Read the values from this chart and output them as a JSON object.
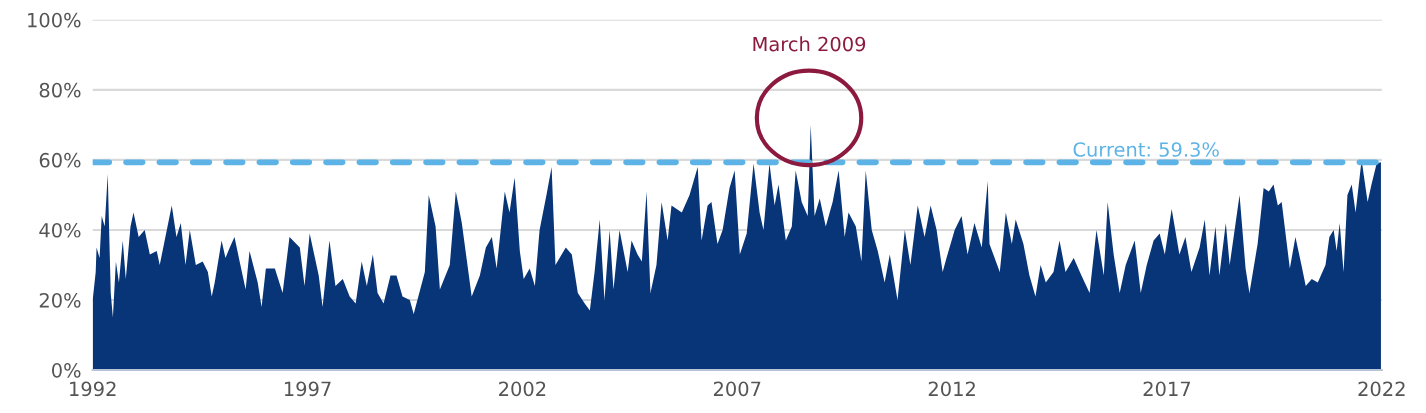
{
  "chart_data": {
    "type": "area",
    "x": [
      1992.0,
      1992.07,
      1992.09,
      1992.16,
      1992.21,
      1992.28,
      1992.35,
      1992.42,
      1992.47,
      1992.54,
      1992.61,
      1992.7,
      1992.77,
      1992.88,
      1992.95,
      1993.07,
      1993.21,
      1993.33,
      1993.49,
      1993.56,
      1993.84,
      1993.95,
      1994.05,
      1994.16,
      1994.26,
      1994.4,
      1994.56,
      1994.68,
      1994.77,
      1994.84,
      1995.0,
      1995.09,
      1995.19,
      1995.3,
      1995.42,
      1995.56,
      1995.65,
      1995.84,
      1995.93,
      1996.03,
      1996.24,
      1996.42,
      1996.58,
      1996.82,
      1996.93,
      1997.05,
      1997.26,
      1997.35,
      1997.51,
      1997.65,
      1997.82,
      1997.98,
      1998.12,
      1998.26,
      1998.38,
      1998.52,
      1998.63,
      1998.77,
      1998.93,
      1999.07,
      1999.21,
      1999.38,
      1999.47,
      1999.73,
      1999.82,
      1999.98,
      2000.08,
      2000.31,
      2000.45,
      2000.59,
      2000.82,
      2001.01,
      2001.15,
      2001.29,
      2001.4,
      2001.59,
      2001.7,
      2001.82,
      2001.94,
      2002.03,
      2002.17,
      2002.29,
      2002.4,
      2002.56,
      2002.68,
      2002.77,
      2003.01,
      2003.15,
      2003.29,
      2003.45,
      2003.57,
      2003.68,
      2003.8,
      2003.91,
      2004.03,
      2004.12,
      2004.26,
      2004.45,
      2004.54,
      2004.68,
      2004.78,
      2004.89,
      2004.98,
      2005.12,
      2005.24,
      2005.38,
      2005.47,
      2005.71,
      2005.89,
      2006.08,
      2006.17,
      2006.31,
      2006.4,
      2006.54,
      2006.66,
      2006.82,
      2006.94,
      2007.06,
      2007.22,
      2007.38,
      2007.52,
      2007.61,
      2007.75,
      2007.87,
      2007.96,
      2008.13,
      2008.27,
      2008.36,
      2008.5,
      2008.64,
      2008.71,
      2008.8,
      2008.92,
      2009.06,
      2009.22,
      2009.36,
      2009.5,
      2009.59,
      2009.76,
      2009.89,
      2009.99,
      2010.13,
      2010.27,
      2010.43,
      2010.55,
      2010.73,
      2010.9,
      2011.03,
      2011.2,
      2011.36,
      2011.5,
      2011.64,
      2011.78,
      2011.87,
      2012.06,
      2012.22,
      2012.36,
      2012.52,
      2012.69,
      2012.83,
      2012.87,
      2013.11,
      2013.25,
      2013.39,
      2013.48,
      2013.66,
      2013.8,
      2013.94,
      2014.06,
      2014.18,
      2014.36,
      2014.5,
      2014.64,
      2014.83,
      2015.01,
      2015.2,
      2015.36,
      2015.53,
      2015.62,
      2015.76,
      2015.9,
      2016.04,
      2016.25,
      2016.39,
      2016.53,
      2016.69,
      2016.83,
      2016.95,
      2017.11,
      2017.29,
      2017.43,
      2017.57,
      2017.76,
      2017.88,
      2017.99,
      2018.13,
      2018.22,
      2018.37,
      2018.46,
      2018.69,
      2018.83,
      2018.92,
      2019.11,
      2019.25,
      2019.37,
      2019.48,
      2019.58,
      2019.67,
      2019.86,
      2019.99,
      2020.13,
      2020.23,
      2020.37,
      2020.51,
      2020.69,
      2020.78,
      2020.88,
      2020.95,
      2021.02,
      2021.11,
      2021.2,
      2021.3,
      2021.39,
      2021.53,
      2021.67,
      2021.76,
      2021.88,
      2021.98
    ],
    "series": [
      {
        "color": "#083577",
        "values": [
          20,
          28,
          35,
          32,
          44,
          41,
          56,
          22,
          15,
          31,
          25,
          37,
          26,
          41,
          45,
          38,
          40,
          33,
          34,
          30,
          47,
          38,
          42,
          30,
          40,
          30,
          31,
          28,
          21,
          25,
          37,
          32,
          35,
          38,
          31,
          23,
          34,
          25,
          18,
          29,
          29,
          22,
          38,
          35,
          24,
          39,
          27,
          18,
          37,
          24,
          26,
          21,
          19,
          31,
          24,
          33,
          22,
          19,
          27,
          27,
          21,
          20,
          16,
          28,
          50,
          41,
          23,
          30,
          51,
          42,
          21,
          27,
          35,
          38,
          29,
          51,
          45,
          55,
          34,
          26,
          29,
          24,
          40,
          50,
          58,
          30,
          35,
          33,
          22,
          19,
          17,
          28,
          43,
          20,
          40,
          23,
          40,
          28,
          37,
          33,
          31,
          51,
          22,
          30,
          48,
          37,
          47,
          45,
          50,
          58,
          37,
          47,
          48,
          36,
          40,
          52,
          57,
          33,
          39,
          59,
          45,
          40,
          59,
          47,
          53,
          37,
          41,
          57,
          48,
          44,
          70,
          44,
          49,
          41,
          48,
          57,
          38,
          45,
          41,
          31,
          57,
          40,
          34,
          25,
          33,
          20,
          40,
          30,
          47,
          38,
          47,
          40,
          28,
          32,
          40,
          44,
          33,
          42,
          35,
          54,
          36,
          28,
          45,
          36,
          43,
          36,
          27,
          21,
          30,
          25,
          28,
          37,
          28,
          32,
          27,
          22,
          40,
          27,
          48,
          33,
          22,
          30,
          37,
          22,
          30,
          37,
          39,
          33,
          46,
          33,
          38,
          28,
          35,
          43,
          27,
          41,
          27,
          42,
          30,
          50,
          29,
          22,
          36,
          52,
          51,
          53,
          47,
          48,
          29,
          38,
          30,
          24,
          26,
          25,
          30,
          38,
          40,
          34,
          42,
          28,
          50,
          53,
          45,
          60,
          48,
          53,
          59,
          59.3
        ]
      }
    ],
    "xlim": [
      1992,
      2022
    ],
    "xticks": [
      1992,
      1997,
      2002,
      2007,
      2012,
      2017,
      2022
    ],
    "ylim": [
      0,
      100
    ],
    "yticks": [
      {
        "value": 0,
        "label": "0%"
      },
      {
        "value": 20,
        "label": "20%"
      },
      {
        "value": 40,
        "label": "40%"
      },
      {
        "value": 60,
        "label": "60%"
      },
      {
        "value": 80,
        "label": "80%"
      },
      {
        "value": 100,
        "label": "100%"
      }
    ],
    "grid": "y",
    "ref_lines": [
      {
        "axis": "y",
        "value": 59.3,
        "label": "Current: 59.3%",
        "color": "#5db3e6",
        "line_style": "dashed"
      }
    ],
    "annotations": [
      "March 2009"
    ]
  }
}
